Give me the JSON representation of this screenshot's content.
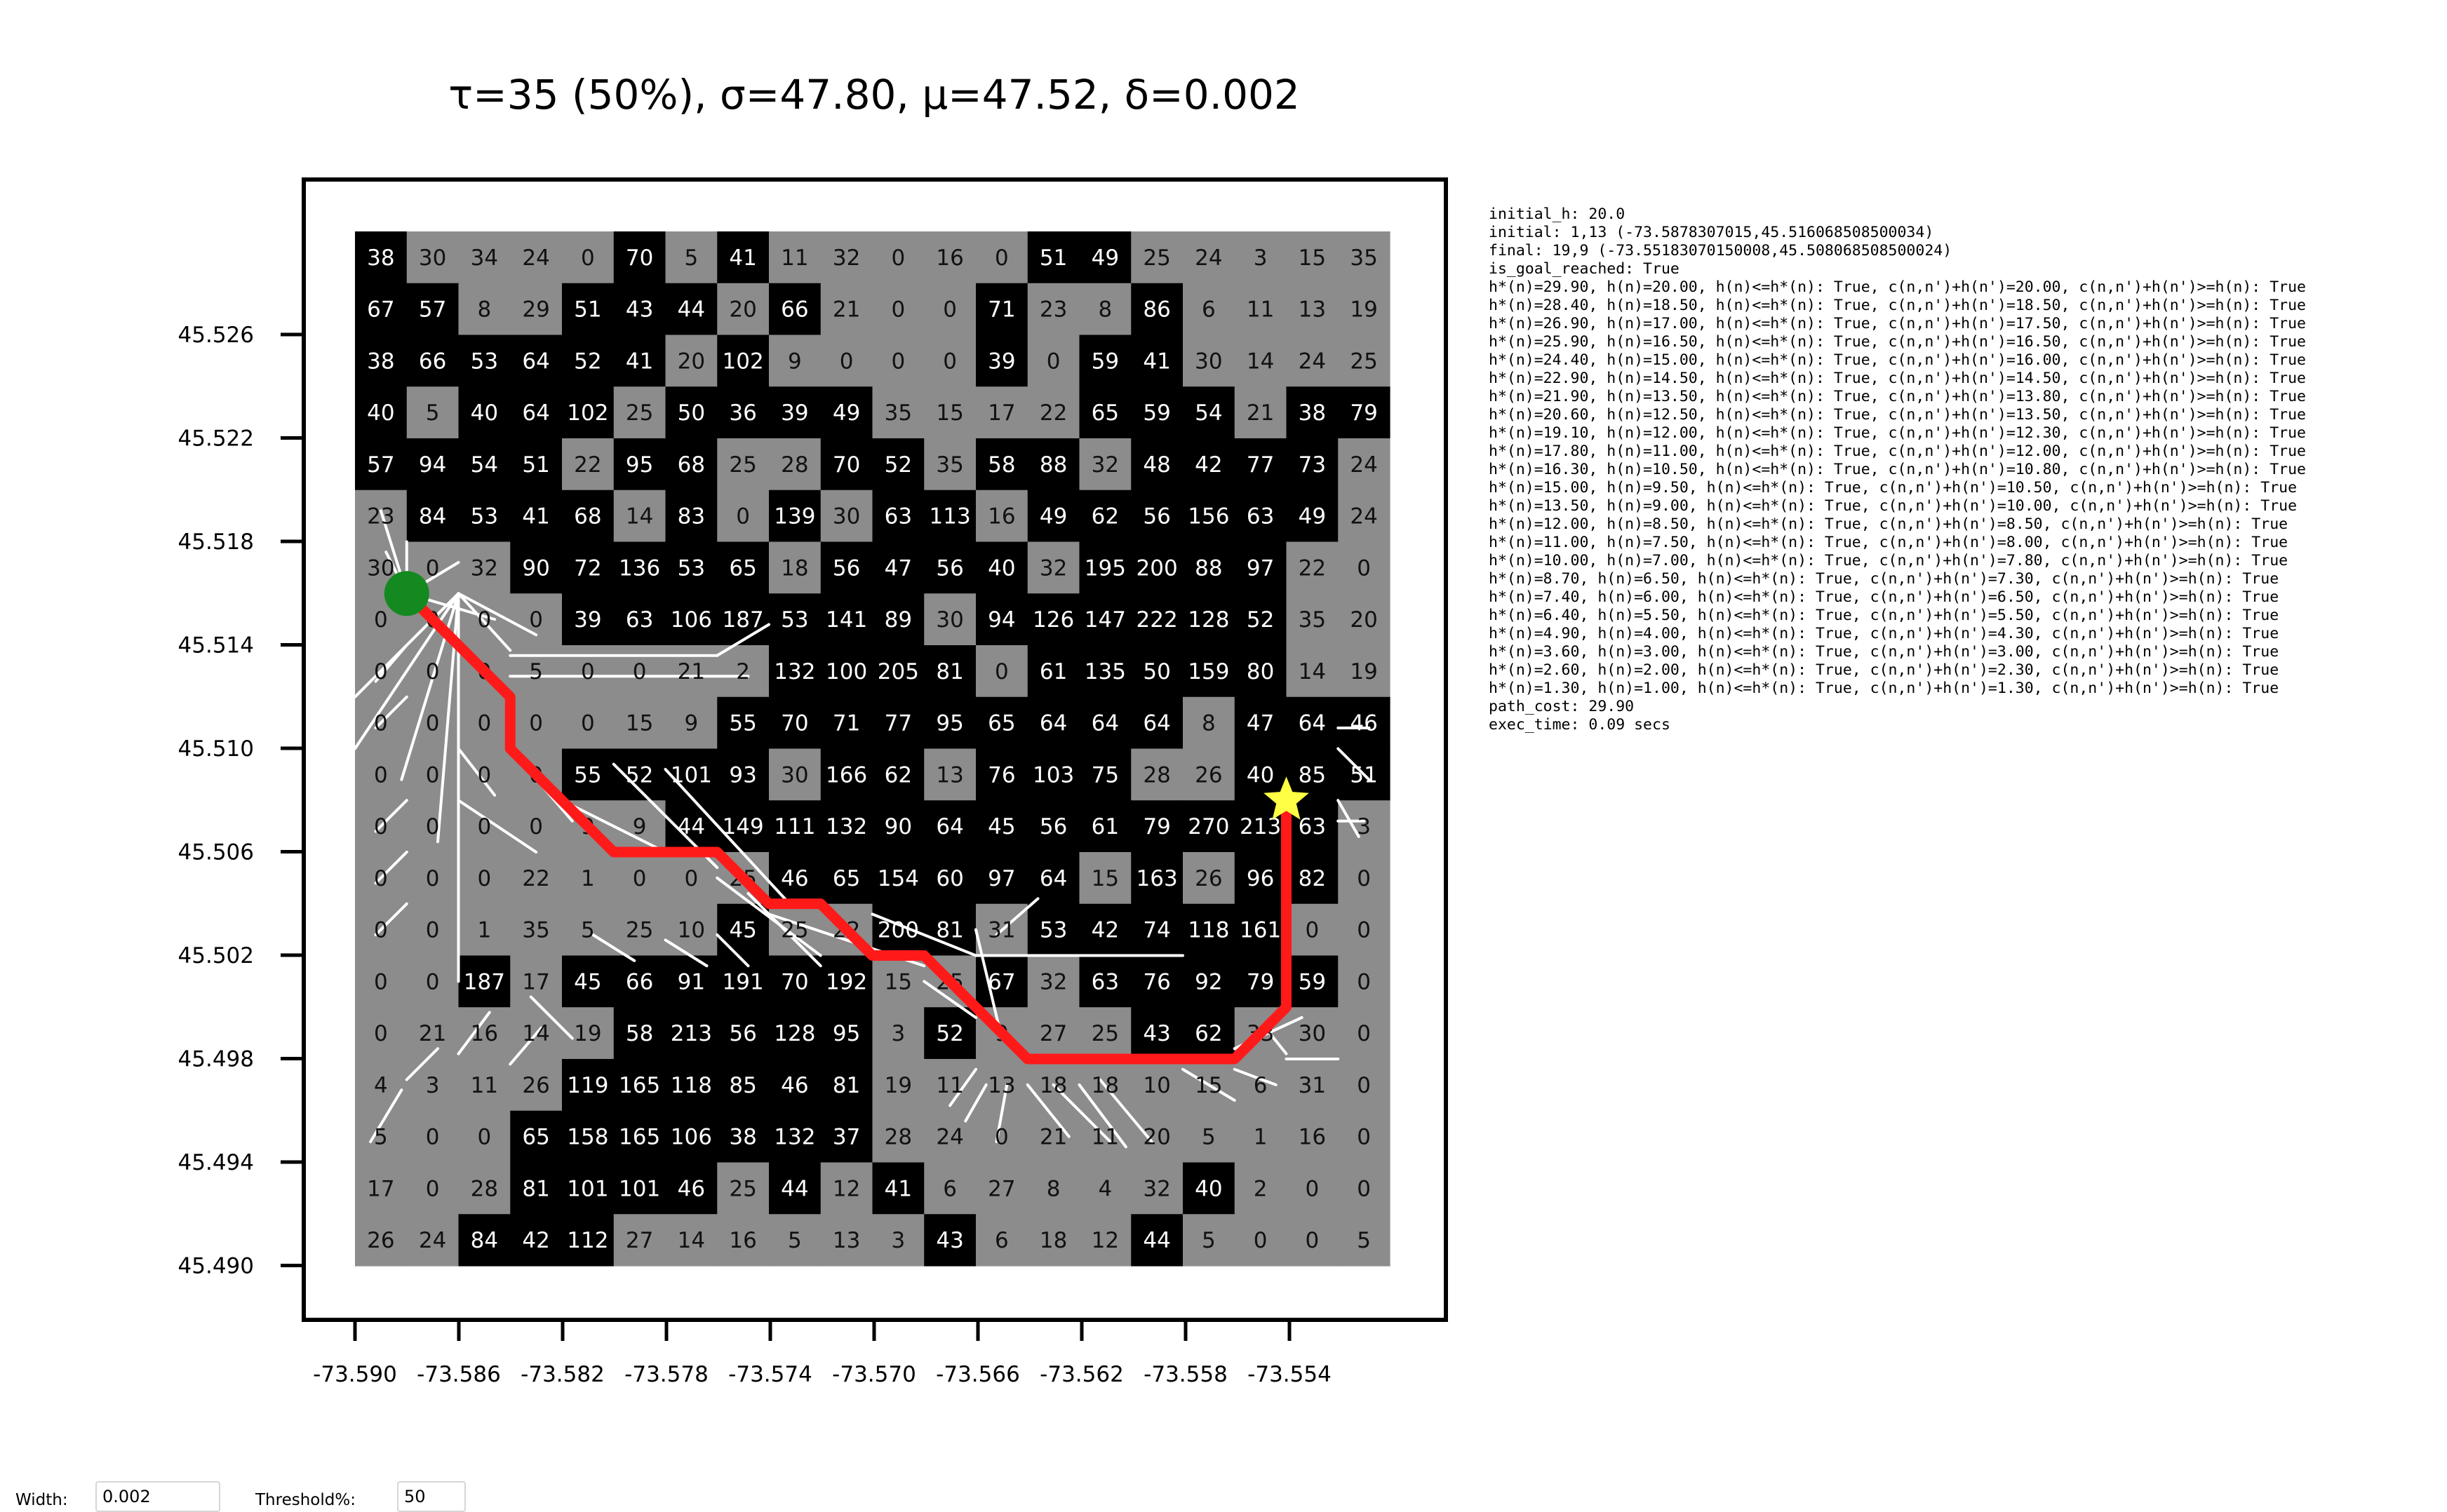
{
  "title": "τ=35 (50%), σ=47.80, μ=47.52, δ=0.002",
  "chart_data": {
    "type": "heatmap",
    "title": "τ=35 (50%), σ=47.80, μ=47.52, δ=0.002",
    "threshold": 35,
    "colors": {
      "above_threshold": "#000000",
      "below_threshold": "#8c8c8c",
      "path": "#ff1a1a",
      "start": "#14891f",
      "goal": "#ffff44",
      "flow_lines": "#ffffff"
    },
    "x_ticks": [
      "-73.590",
      "-73.586",
      "-73.582",
      "-73.578",
      "-73.574",
      "-73.570",
      "-73.566",
      "-73.562",
      "-73.558",
      "-73.554"
    ],
    "y_ticks": [
      "45.526",
      "45.522",
      "45.518",
      "45.514",
      "45.510",
      "45.506",
      "45.502",
      "45.498",
      "45.494",
      "45.490"
    ],
    "grid": [
      [
        38,
        30,
        34,
        24,
        0,
        70,
        5,
        41,
        11,
        32,
        0,
        16,
        0,
        51,
        49,
        25,
        24,
        3,
        15,
        35
      ],
      [
        67,
        57,
        8,
        29,
        51,
        43,
        44,
        20,
        66,
        21,
        0,
        0,
        71,
        23,
        8,
        86,
        6,
        11,
        13,
        19
      ],
      [
        38,
        66,
        53,
        64,
        52,
        41,
        20,
        102,
        9,
        0,
        0,
        0,
        39,
        0,
        59,
        41,
        30,
        14,
        24,
        25
      ],
      [
        40,
        5,
        40,
        64,
        102,
        25,
        50,
        36,
        39,
        49,
        35,
        15,
        17,
        22,
        65,
        59,
        54,
        21,
        38,
        79
      ],
      [
        57,
        94,
        54,
        51,
        22,
        95,
        68,
        25,
        28,
        70,
        52,
        35,
        58,
        88,
        32,
        48,
        42,
        77,
        73,
        24
      ],
      [
        23,
        84,
        53,
        41,
        68,
        14,
        83,
        0,
        139,
        30,
        63,
        113,
        16,
        49,
        62,
        56,
        156,
        63,
        49,
        24
      ],
      [
        30,
        0,
        32,
        90,
        72,
        136,
        53,
        65,
        18,
        56,
        47,
        56,
        40,
        32,
        195,
        200,
        88,
        97,
        22,
        0
      ],
      [
        0,
        0,
        0,
        0,
        39,
        63,
        106,
        187,
        53,
        141,
        89,
        30,
        94,
        126,
        147,
        222,
        128,
        52,
        35,
        20
      ],
      [
        0,
        0,
        0,
        5,
        0,
        0,
        21,
        2,
        132,
        100,
        205,
        81,
        0,
        61,
        135,
        50,
        159,
        80,
        14,
        19
      ],
      [
        0,
        0,
        0,
        0,
        0,
        15,
        9,
        55,
        70,
        71,
        77,
        95,
        65,
        64,
        64,
        64,
        8,
        47,
        64,
        46
      ],
      [
        0,
        0,
        0,
        0,
        55,
        52,
        101,
        93,
        30,
        166,
        62,
        13,
        76,
        103,
        75,
        28,
        26,
        40,
        85,
        51
      ],
      [
        0,
        0,
        0,
        0,
        9,
        9,
        44,
        149,
        111,
        132,
        90,
        64,
        45,
        56,
        61,
        79,
        270,
        213,
        63,
        3
      ],
      [
        0,
        0,
        0,
        22,
        1,
        0,
        0,
        25,
        46,
        65,
        154,
        60,
        97,
        64,
        15,
        163,
        26,
        96,
        82,
        0
      ],
      [
        0,
        0,
        1,
        35,
        5,
        25,
        10,
        45,
        25,
        22,
        200,
        81,
        31,
        53,
        42,
        74,
        118,
        161,
        0,
        0
      ],
      [
        0,
        0,
        187,
        17,
        45,
        66,
        91,
        191,
        70,
        192,
        15,
        25,
        67,
        32,
        63,
        76,
        92,
        79,
        59,
        0
      ],
      [
        0,
        21,
        16,
        14,
        19,
        58,
        213,
        56,
        128,
        95,
        3,
        52,
        9,
        27,
        25,
        43,
        62,
        33,
        30,
        0
      ],
      [
        4,
        3,
        11,
        26,
        119,
        165,
        118,
        85,
        46,
        81,
        19,
        11,
        13,
        18,
        18,
        10,
        15,
        6,
        31,
        0
      ],
      [
        5,
        0,
        0,
        65,
        158,
        165,
        106,
        38,
        132,
        37,
        28,
        24,
        0,
        21,
        11,
        20,
        5,
        1,
        16,
        0
      ],
      [
        17,
        0,
        28,
        81,
        101,
        101,
        46,
        25,
        44,
        12,
        41,
        6,
        27,
        8,
        4,
        32,
        40,
        2,
        0,
        0
      ],
      [
        26,
        24,
        84,
        42,
        112,
        27,
        14,
        16,
        5,
        13,
        3,
        43,
        6,
        18,
        12,
        44,
        5,
        0,
        0,
        5
      ]
    ],
    "path": [
      [
        1,
        7
      ],
      [
        1,
        7
      ],
      [
        2,
        8
      ],
      [
        3,
        9
      ],
      [
        3,
        10
      ],
      [
        4,
        11
      ],
      [
        5,
        12
      ],
      [
        6,
        12
      ],
      [
        7,
        12
      ],
      [
        8,
        13
      ],
      [
        9,
        13
      ],
      [
        10,
        14
      ],
      [
        11,
        14
      ],
      [
        12,
        15
      ],
      [
        13,
        16
      ],
      [
        14,
        16
      ],
      [
        15,
        16
      ],
      [
        16,
        16
      ],
      [
        17,
        16
      ],
      [
        18,
        15
      ],
      [
        18,
        14
      ],
      [
        18,
        13
      ],
      [
        18,
        12
      ],
      [
        18,
        11
      ]
    ],
    "start": [
      1,
      7
    ],
    "goal": [
      18,
      11
    ]
  },
  "log_lines": [
    "initial_h: 20.0",
    "initial: 1,13 (-73.5878307015,45.516068508500034)",
    "final: 19,9 (-73.55183070150008,45.508068508500024)",
    "is_goal_reached: True",
    "h*(n)=29.90, h(n)=20.00, h(n)<=h*(n): True, c(n,n')+h(n')=20.00, c(n,n')+h(n')>=h(n): True",
    "h*(n)=28.40, h(n)=18.50, h(n)<=h*(n): True, c(n,n')+h(n')=18.50, c(n,n')+h(n')>=h(n): True",
    "h*(n)=26.90, h(n)=17.00, h(n)<=h*(n): True, c(n,n')+h(n')=17.50, c(n,n')+h(n')>=h(n): True",
    "h*(n)=25.90, h(n)=16.50, h(n)<=h*(n): True, c(n,n')+h(n')=16.50, c(n,n')+h(n')>=h(n): True",
    "h*(n)=24.40, h(n)=15.00, h(n)<=h*(n): True, c(n,n')+h(n')=16.00, c(n,n')+h(n')>=h(n): True",
    "h*(n)=22.90, h(n)=14.50, h(n)<=h*(n): True, c(n,n')+h(n')=14.50, c(n,n')+h(n')>=h(n): True",
    "h*(n)=21.90, h(n)=13.50, h(n)<=h*(n): True, c(n,n')+h(n')=13.80, c(n,n')+h(n')>=h(n): True",
    "h*(n)=20.60, h(n)=12.50, h(n)<=h*(n): True, c(n,n')+h(n')=13.50, c(n,n')+h(n')>=h(n): True",
    "h*(n)=19.10, h(n)=12.00, h(n)<=h*(n): True, c(n,n')+h(n')=12.30, c(n,n')+h(n')>=h(n): True",
    "h*(n)=17.80, h(n)=11.00, h(n)<=h*(n): True, c(n,n')+h(n')=12.00, c(n,n')+h(n')>=h(n): True",
    "h*(n)=16.30, h(n)=10.50, h(n)<=h*(n): True, c(n,n')+h(n')=10.80, c(n,n')+h(n')>=h(n): True",
    "h*(n)=15.00, h(n)=9.50, h(n)<=h*(n): True, c(n,n')+h(n')=10.50, c(n,n')+h(n')>=h(n): True",
    "h*(n)=13.50, h(n)=9.00, h(n)<=h*(n): True, c(n,n')+h(n')=10.00, c(n,n')+h(n')>=h(n): True",
    "h*(n)=12.00, h(n)=8.50, h(n)<=h*(n): True, c(n,n')+h(n')=8.50, c(n,n')+h(n')>=h(n): True",
    "h*(n)=11.00, h(n)=7.50, h(n)<=h*(n): True, c(n,n')+h(n')=8.00, c(n,n')+h(n')>=h(n): True",
    "h*(n)=10.00, h(n)=7.00, h(n)<=h*(n): True, c(n,n')+h(n')=7.80, c(n,n')+h(n')>=h(n): True",
    "h*(n)=8.70, h(n)=6.50, h(n)<=h*(n): True, c(n,n')+h(n')=7.30, c(n,n')+h(n')>=h(n): True",
    "h*(n)=7.40, h(n)=6.00, h(n)<=h*(n): True, c(n,n')+h(n')=6.50, c(n,n')+h(n')>=h(n): True",
    "h*(n)=6.40, h(n)=5.50, h(n)<=h*(n): True, c(n,n')+h(n')=5.50, c(n,n')+h(n')>=h(n): True",
    "h*(n)=4.90, h(n)=4.00, h(n)<=h*(n): True, c(n,n')+h(n')=4.30, c(n,n')+h(n')>=h(n): True",
    "h*(n)=3.60, h(n)=3.00, h(n)<=h*(n): True, c(n,n')+h(n')=3.00, c(n,n')+h(n')>=h(n): True",
    "h*(n)=2.60, h(n)=2.00, h(n)<=h*(n): True, c(n,n')+h(n')=2.30, c(n,n')+h(n')>=h(n): True",
    "h*(n)=1.30, h(n)=1.00, h(n)<=h*(n): True, c(n,n')+h(n')=1.30, c(n,n')+h(n')>=h(n): True",
    "path_cost: 29.90",
    "exec_time: 0.09 secs"
  ],
  "controls": {
    "width_label": "Width:",
    "width_value": "0.002",
    "threshold_label": "Threshold%:",
    "threshold_value": "50"
  }
}
